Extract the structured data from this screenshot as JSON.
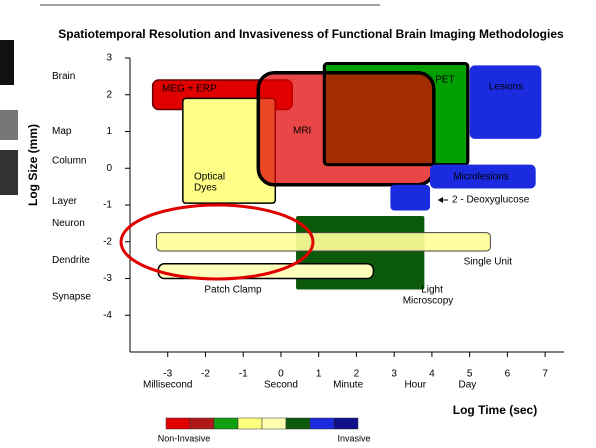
{
  "chart_data": {
    "type": "region",
    "title": "Spatiotemporal Resolution and Invasiveness of Functional Brain Imaging Methodologies",
    "xlabel": "Log Time (sec)",
    "ylabel": "Log Size (mm)",
    "xlim": [
      -4,
      7.5
    ],
    "ylim": [
      -5,
      3
    ],
    "xticks": [
      -3,
      -2,
      -1,
      0,
      1,
      2,
      3,
      4,
      5,
      6,
      7
    ],
    "yticks": [
      -4,
      -3,
      -2,
      -1,
      0,
      1,
      2,
      3
    ],
    "x_annotations": [
      {
        "label": "Millisecond",
        "value": -3
      },
      {
        "label": "Second",
        "value": 0
      },
      {
        "label": "Minute",
        "value": 1.78
      },
      {
        "label": "Hour",
        "value": 3.56
      },
      {
        "label": "Day",
        "value": 4.94
      }
    ],
    "y_annotations": [
      {
        "label": "Brain",
        "value": 2.5
      },
      {
        "label": "Map",
        "value": 1
      },
      {
        "label": "Column",
        "value": 0.2
      },
      {
        "label": "Layer",
        "value": -0.9
      },
      {
        "label": "Neuron",
        "value": -1.5
      },
      {
        "label": "Dendrite",
        "value": -2.5
      },
      {
        "label": "Synapse",
        "value": -3.5
      }
    ],
    "regions": [
      {
        "label": [
          "MEG + ERP"
        ],
        "color": "#e00000",
        "x": [
          -3.4,
          0.3
        ],
        "y": [
          1.6,
          2.4
        ]
      },
      {
        "label": [
          "Optical",
          "Dyes"
        ],
        "color": "#ffff88",
        "x": [
          -2.6,
          -0.15
        ],
        "y": [
          -0.95,
          1.9
        ]
      },
      {
        "label": [
          "PET"
        ],
        "color": "#00a000",
        "x": [
          1.15,
          4.95
        ],
        "y": [
          0.1,
          2.85
        ]
      },
      {
        "label": [
          "MRI"
        ],
        "color": "#e00000",
        "x": [
          -0.6,
          4.05
        ],
        "y": [
          -0.45,
          2.6
        ]
      },
      {
        "label": [
          "Lesions"
        ],
        "color": "#1a2be0",
        "x": [
          5.0,
          6.9
        ],
        "y": [
          0.8,
          2.8
        ]
      },
      {
        "label": [
          "Microlesions"
        ],
        "color": "#1a2be0",
        "x": [
          3.95,
          6.75
        ],
        "y": [
          -0.55,
          0.1
        ]
      },
      {
        "label": [
          "2 - Deoxyglucose"
        ],
        "color": "#1a2be0",
        "x": [
          2.9,
          3.95
        ],
        "y": [
          -1.15,
          -0.45
        ]
      },
      {
        "label": [
          "Light",
          "Microscopy"
        ],
        "color": "#0b5a0b",
        "x": [
          0.4,
          3.8
        ],
        "y": [
          -3.3,
          -1.3
        ]
      },
      {
        "label": [
          "Single Unit"
        ],
        "color": "#ffff99",
        "x": [
          -3.3,
          5.55
        ],
        "y": [
          -2.25,
          -1.75
        ]
      },
      {
        "label": [
          "Patch Clamp"
        ],
        "color": "#ffffbb",
        "x": [
          -3.25,
          2.45
        ],
        "y": [
          -3.0,
          -2.6
        ]
      }
    ],
    "scale_colors": [
      "#e00000",
      "#b01818",
      "#10a010",
      "#ffff80",
      "#ffffb0",
      "#0b5a0b",
      "#1a2be0",
      "#10108a"
    ],
    "scale_labels": [
      "Non-Invasive",
      "Invasive"
    ]
  }
}
